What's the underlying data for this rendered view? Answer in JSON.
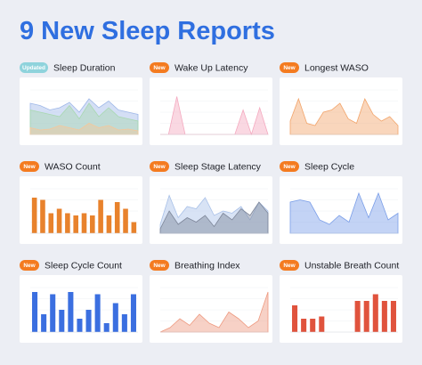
{
  "title": "9 New Sleep Reports",
  "cards": [
    {
      "badge": "Updated",
      "title": "Sleep Duration"
    },
    {
      "badge": "New",
      "title": "Wake Up Latency"
    },
    {
      "badge": "New",
      "title": "Longest WASO"
    },
    {
      "badge": "New",
      "title": "WASO Count"
    },
    {
      "badge": "New",
      "title": "Sleep Stage Latency"
    },
    {
      "badge": "New",
      "title": "Sleep Cycle"
    },
    {
      "badge": "New",
      "title": "Sleep Cycle Count"
    },
    {
      "badge": "New",
      "title": "Breathing Index"
    },
    {
      "badge": "New",
      "title": "Unstable Breath Count"
    }
  ],
  "chart_data": [
    {
      "type": "area",
      "ylim": [
        0,
        100
      ],
      "series": [
        {
          "color": "#9fb8e8",
          "values": [
            70,
            65,
            55,
            60,
            72,
            50,
            80,
            60,
            75,
            55,
            50,
            45
          ]
        },
        {
          "color": "#a8d8b0",
          "values": [
            55,
            50,
            45,
            40,
            65,
            35,
            70,
            40,
            60,
            40,
            35,
            30
          ]
        },
        {
          "color": "#f5c79a",
          "values": [
            15,
            10,
            12,
            20,
            15,
            10,
            25,
            15,
            20,
            10,
            12,
            8
          ]
        }
      ]
    },
    {
      "type": "area",
      "ylim": [
        0,
        100
      ],
      "series": [
        {
          "color": "#f4a9bf",
          "values": [
            0,
            0,
            85,
            0,
            0,
            0,
            0,
            0,
            0,
            0,
            55,
            0,
            60,
            0
          ]
        }
      ]
    },
    {
      "type": "area",
      "ylim": [
        0,
        100
      ],
      "series": [
        {
          "color": "#f2a46a",
          "values": [
            30,
            80,
            25,
            20,
            50,
            55,
            70,
            35,
            25,
            80,
            45,
            30,
            40,
            20
          ]
        }
      ]
    },
    {
      "type": "bar",
      "ylim": [
        0,
        100
      ],
      "series": [
        {
          "color": "#e8822c",
          "values": [
            80,
            75,
            45,
            55,
            45,
            40,
            45,
            40,
            75,
            40,
            70,
            55,
            25
          ]
        }
      ]
    },
    {
      "type": "area",
      "ylim": [
        0,
        100
      ],
      "series": [
        {
          "color": "#a9c1e8",
          "values": [
            20,
            85,
            35,
            60,
            55,
            80,
            40,
            50,
            45,
            60,
            30,
            70,
            50
          ]
        },
        {
          "color": "#7d8699",
          "values": [
            10,
            50,
            20,
            35,
            25,
            40,
            15,
            45,
            30,
            55,
            40,
            70,
            45
          ]
        }
      ]
    },
    {
      "type": "area",
      "ylim": [
        0,
        100
      ],
      "series": [
        {
          "color": "#7a9ee8",
          "values": [
            70,
            75,
            70,
            30,
            20,
            40,
            25,
            90,
            35,
            90,
            30,
            45
          ]
        }
      ]
    },
    {
      "type": "bar",
      "ylim": [
        0,
        100
      ],
      "series": [
        {
          "color": "#3b6fe0",
          "values": [
            90,
            40,
            85,
            50,
            90,
            30,
            50,
            85,
            20,
            65,
            40,
            85
          ]
        }
      ]
    },
    {
      "type": "area",
      "ylim": [
        0,
        100
      ],
      "series": [
        {
          "color": "#ee9a80",
          "values": [
            0,
            10,
            30,
            15,
            40,
            20,
            10,
            45,
            30,
            10,
            25,
            90
          ]
        }
      ]
    },
    {
      "type": "bar",
      "ylim": [
        0,
        100
      ],
      "series": [
        {
          "color": "#e0533d",
          "values": [
            60,
            30,
            30,
            35,
            0,
            0,
            0,
            70,
            70,
            85,
            70,
            70
          ]
        }
      ]
    }
  ]
}
